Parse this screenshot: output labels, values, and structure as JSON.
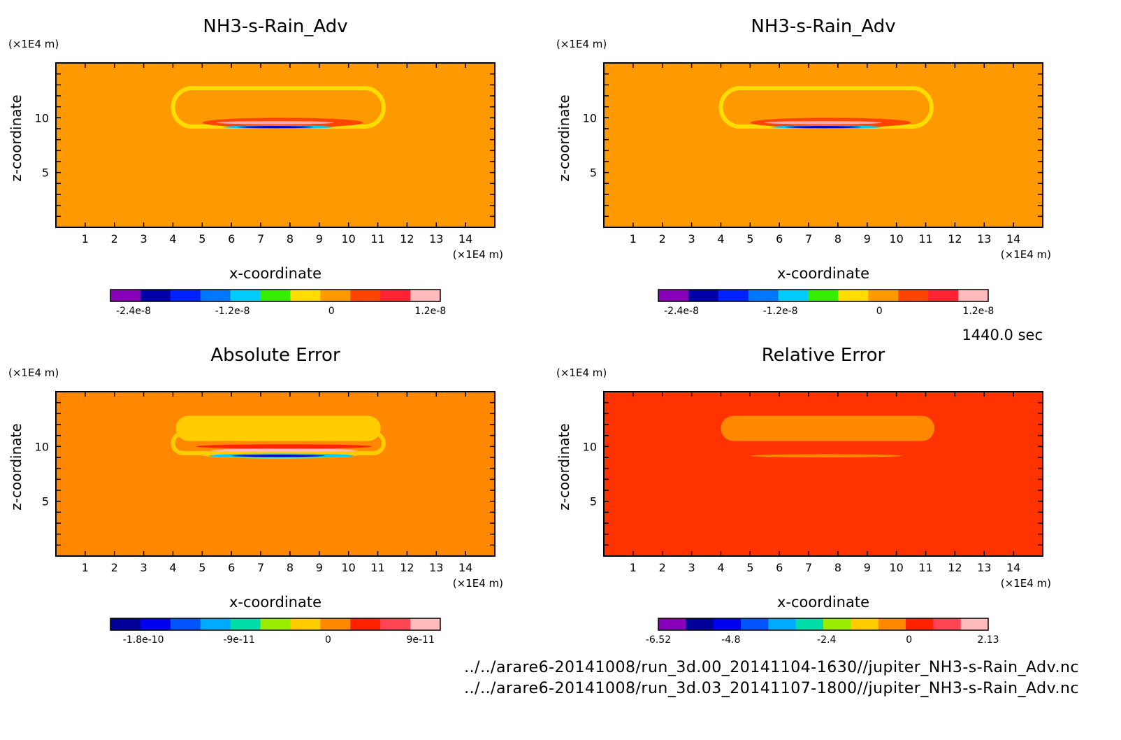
{
  "time_label": "1440.0 sec",
  "footer": {
    "line1": "../../arare6-20141008/run_3d.00_20141104-1630//jupiter_NH3-s-Rain_Adv.nc",
    "line2": "../../arare6-20141008/run_3d.03_20141107-1800//jupiter_NH3-s-Rain_Adv.nc"
  },
  "chart_data": [
    {
      "type": "heatmap",
      "title": "NH3-s-Rain_Adv",
      "xlabel": "x-coordinate",
      "ylabel": "z-coordinate",
      "x_unit": "(×1E4 m)",
      "y_unit": "(×1E4 m)",
      "xlim": [
        0,
        15
      ],
      "ylim": [
        0,
        15
      ],
      "x_ticks": [
        "1",
        "2",
        "3",
        "4",
        "5",
        "6",
        "7",
        "8",
        "9",
        "10",
        "11",
        "12",
        "13",
        "14"
      ],
      "y_ticks": [
        "5",
        "10"
      ],
      "background_color": "#ff9900",
      "features": [
        {
          "shape": "ring",
          "x": [
            4,
            11.2
          ],
          "z": [
            9.2,
            12.7
          ],
          "color": "#ffdd00"
        },
        {
          "shape": "band",
          "x": [
            5,
            10.5
          ],
          "z": [
            9.1,
            10.0
          ],
          "color": "#ff4400"
        },
        {
          "shape": "band",
          "x": [
            5.5,
            9.5
          ],
          "z": [
            9.4,
            9.7
          ],
          "color": "#ffaaaa"
        },
        {
          "shape": "band",
          "x": [
            5.7,
            9.5
          ],
          "z": [
            9.0,
            9.3
          ],
          "color": "#00ccff"
        },
        {
          "shape": "band",
          "x": [
            6.2,
            8.8
          ],
          "z": [
            9.05,
            9.25
          ],
          "color": "#0000cc"
        }
      ],
      "colorbar": {
        "colors": [
          "#8800bb",
          "#0000aa",
          "#0022ff",
          "#0077ff",
          "#00ccff",
          "#33ee00",
          "#ffdd00",
          "#ff9900",
          "#ff4400",
          "#ff2233",
          "#ffbbbb"
        ],
        "labels": [
          "-2.4e-8",
          "-1.2e-8",
          "0",
          "1.2e-8"
        ],
        "label_positions": [
          0.07,
          0.37,
          0.67,
          0.97
        ]
      }
    },
    {
      "type": "heatmap",
      "title": "NH3-s-Rain_Adv",
      "xlabel": "x-coordinate",
      "ylabel": "z-coordinate",
      "x_unit": "(×1E4 m)",
      "y_unit": "(×1E4 m)",
      "xlim": [
        0,
        15
      ],
      "ylim": [
        0,
        15
      ],
      "x_ticks": [
        "1",
        "2",
        "3",
        "4",
        "5",
        "6",
        "7",
        "8",
        "9",
        "10",
        "11",
        "12",
        "13",
        "14"
      ],
      "y_ticks": [
        "5",
        "10"
      ],
      "background_color": "#ff9900",
      "features": [
        {
          "shape": "ring",
          "x": [
            4,
            11.2
          ],
          "z": [
            9.2,
            12.7
          ],
          "color": "#ffdd00"
        },
        {
          "shape": "band",
          "x": [
            5,
            10.5
          ],
          "z": [
            9.1,
            10.0
          ],
          "color": "#ff4400"
        },
        {
          "shape": "band",
          "x": [
            5.5,
            9.5
          ],
          "z": [
            9.4,
            9.7
          ],
          "color": "#ffaaaa"
        },
        {
          "shape": "band",
          "x": [
            5.7,
            9.5
          ],
          "z": [
            9.0,
            9.3
          ],
          "color": "#00ccff"
        },
        {
          "shape": "band",
          "x": [
            6.2,
            8.8
          ],
          "z": [
            9.05,
            9.25
          ],
          "color": "#0000cc"
        }
      ],
      "colorbar": {
        "colors": [
          "#8800bb",
          "#0000aa",
          "#0022ff",
          "#0077ff",
          "#00ccff",
          "#33ee00",
          "#ffdd00",
          "#ff9900",
          "#ff4400",
          "#ff2233",
          "#ffbbbb"
        ],
        "labels": [
          "-2.4e-8",
          "-1.2e-8",
          "0",
          "1.2e-8"
        ],
        "label_positions": [
          0.07,
          0.37,
          0.67,
          0.97
        ]
      }
    },
    {
      "type": "heatmap",
      "title": "Absolute Error",
      "xlabel": "x-coordinate",
      "ylabel": "z-coordinate",
      "x_unit": "(×1E4 m)",
      "y_unit": "(×1E4 m)",
      "xlim": [
        0,
        15
      ],
      "ylim": [
        0,
        15
      ],
      "x_ticks": [
        "1",
        "2",
        "3",
        "4",
        "5",
        "6",
        "7",
        "8",
        "9",
        "10",
        "11",
        "12",
        "13",
        "14"
      ],
      "y_ticks": [
        "5",
        "10"
      ],
      "background_color": "#ff8800",
      "features": [
        {
          "shape": "blob",
          "x": [
            4.1,
            11.1
          ],
          "z": [
            10.5,
            12.8
          ],
          "color": "#ffcc00"
        },
        {
          "shape": "ring",
          "x": [
            4,
            11.2
          ],
          "z": [
            9.4,
            11.2
          ],
          "color": "#ffcc00"
        },
        {
          "shape": "band",
          "x": [
            4.8,
            10.8
          ],
          "z": [
            9.8,
            10.2
          ],
          "color": "#ff2200"
        },
        {
          "shape": "band",
          "x": [
            5.3,
            10.3
          ],
          "z": [
            9.5,
            9.8
          ],
          "color": "#ffbbbb"
        },
        {
          "shape": "band",
          "x": [
            5.0,
            10.3
          ],
          "z": [
            8.9,
            9.5
          ],
          "color": "#ffcc00"
        },
        {
          "shape": "band",
          "x": [
            5.2,
            10.2
          ],
          "z": [
            8.95,
            9.35
          ],
          "color": "#00ccff"
        },
        {
          "shape": "band",
          "x": [
            6.0,
            9.2
          ],
          "z": [
            9.05,
            9.25
          ],
          "color": "#0000bb"
        }
      ],
      "colorbar": {
        "colors": [
          "#000099",
          "#0000ee",
          "#0055ff",
          "#00aaff",
          "#00ddaa",
          "#99ee00",
          "#ffcc00",
          "#ff8800",
          "#ff2200",
          "#ff4455",
          "#ffbbbb"
        ],
        "labels": [
          "-1.8e-10",
          "-9e-11",
          "0",
          "9e-11"
        ],
        "label_positions": [
          0.1,
          0.39,
          0.66,
          0.94
        ]
      }
    },
    {
      "type": "heatmap",
      "title": "Relative Error",
      "xlabel": "x-coordinate",
      "ylabel": "z-coordinate",
      "x_unit": "(×1E4 m)",
      "y_unit": "(×1E4 m)",
      "xlim": [
        0,
        15
      ],
      "ylim": [
        0,
        15
      ],
      "x_ticks": [
        "1",
        "2",
        "3",
        "4",
        "5",
        "6",
        "7",
        "8",
        "9",
        "10",
        "11",
        "12",
        "13",
        "14"
      ],
      "y_ticks": [
        "5",
        "10"
      ],
      "background_color": "#ff3300",
      "features": [
        {
          "shape": "blob",
          "x": [
            4.0,
            11.3
          ],
          "z": [
            10.5,
            12.8
          ],
          "color": "#ff8800"
        },
        {
          "shape": "band",
          "x": [
            5.0,
            10.2
          ],
          "z": [
            9.0,
            9.3
          ],
          "color": "#ff8800"
        }
      ],
      "colorbar": {
        "colors": [
          "#8800bb",
          "#000099",
          "#0000ee",
          "#0055ff",
          "#00aaff",
          "#00ddaa",
          "#99ee00",
          "#ffcc00",
          "#ff8800",
          "#ff2200",
          "#ff4455",
          "#ffbbbb"
        ],
        "labels": [
          "-6.52",
          "-4.8",
          "-2.4",
          "0",
          "2.13"
        ],
        "label_positions": [
          0.0,
          0.22,
          0.51,
          0.76,
          1.0
        ]
      }
    }
  ]
}
